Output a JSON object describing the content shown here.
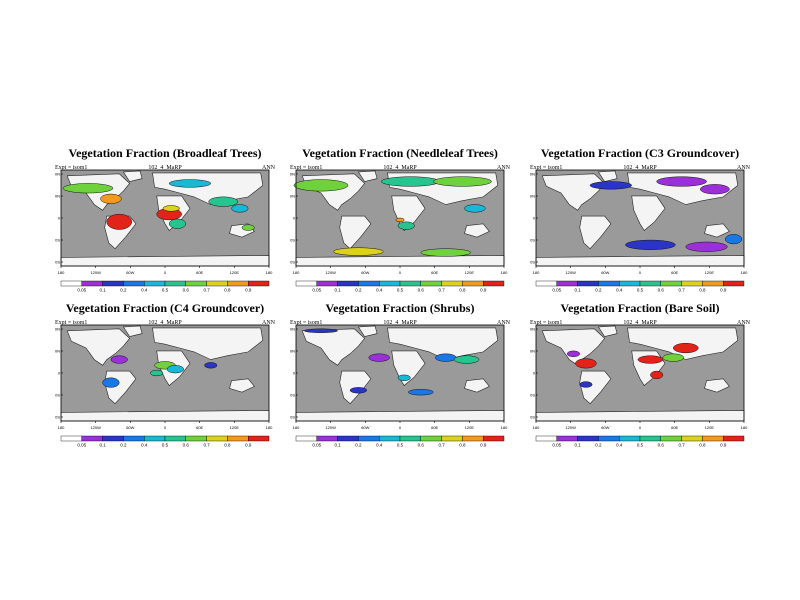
{
  "panels": [
    {
      "title": "Vegetation Fraction (Broadleaf Trees)",
      "expt": "Expt = isom1",
      "case": "102_4_MaRP",
      "season": "ANN",
      "lon_labels": [
        "180",
        "120W",
        "60W",
        "0",
        "60E",
        "120E",
        "180"
      ],
      "lat_labels": [
        "80N",
        "40N",
        "0",
        "40S",
        "80S"
      ],
      "cbar_labels": [
        "0.05",
        "0.1",
        "0.2",
        "0.4",
        "0.5",
        "0.6",
        "0.7",
        "0.8",
        "0.9"
      ]
    },
    {
      "title": "Vegetation Fraction (Needleleaf Trees)",
      "expt": "Expt = isom1",
      "case": "102_4_MaRP",
      "season": "ANN",
      "lon_labels": [
        "180",
        "120W",
        "60W",
        "0",
        "60E",
        "120E",
        "180"
      ],
      "lat_labels": [
        "80N",
        "40N",
        "0",
        "40S",
        "80S"
      ],
      "cbar_labels": [
        "0.05",
        "0.1",
        "0.2",
        "0.4",
        "0.5",
        "0.6",
        "0.7",
        "0.8",
        "0.9"
      ]
    },
    {
      "title": "Vegetation Fraction (C3 Groundcover)",
      "expt": "Expt = isom1",
      "case": "102_4_MaRP",
      "season": "ANN",
      "lon_labels": [
        "180",
        "120W",
        "60W",
        "0",
        "60E",
        "120E",
        "180"
      ],
      "lat_labels": [
        "80N",
        "40N",
        "0",
        "40S",
        "80S"
      ],
      "cbar_labels": [
        "0.05",
        "0.1",
        "0.2",
        "0.4",
        "0.5",
        "0.6",
        "0.7",
        "0.8",
        "0.9"
      ]
    },
    {
      "title": "Vegetation Fraction (C4 Groundcover)",
      "expt": "Expt = isom1",
      "case": "102_4_MaRP",
      "season": "ANN",
      "lon_labels": [
        "180",
        "120W",
        "60W",
        "0",
        "60E",
        "120E",
        "180"
      ],
      "lat_labels": [
        "80N",
        "40N",
        "0",
        "40S",
        "80S"
      ],
      "cbar_labels": [
        "0.05",
        "0.1",
        "0.2",
        "0.4",
        "0.5",
        "0.6",
        "0.7",
        "0.8",
        "0.9"
      ]
    },
    {
      "title": "Vegetation Fraction (Shrubs)",
      "expt": "Expt = isom1",
      "case": "102_4_MaRP",
      "season": "ANN",
      "lon_labels": [
        "180",
        "120W",
        "60W",
        "0",
        "60E",
        "120E",
        "180"
      ],
      "lat_labels": [
        "80N",
        "40N",
        "0",
        "40S",
        "80S"
      ],
      "cbar_labels": [
        "0.05",
        "0.1",
        "0.2",
        "0.4",
        "0.5",
        "0.6",
        "0.7",
        "0.8",
        "0.9"
      ]
    },
    {
      "title": "Vegetation Fraction (Bare Soil)",
      "expt": "Expt = isom1",
      "case": "102_4_MaRP",
      "season": "ANN",
      "lon_labels": [
        "180",
        "120W",
        "60W",
        "0",
        "60E",
        "120E",
        "180"
      ],
      "lat_labels": [
        "80N",
        "40N",
        "0",
        "40S",
        "80S"
      ],
      "cbar_labels": [
        "0.05",
        "0.1",
        "0.2",
        "0.4",
        "0.5",
        "0.6",
        "0.7",
        "0.8",
        "0.9"
      ]
    }
  ],
  "colors": {
    "ocean": "#9a9a9a",
    "land_empty": "#f4f4f4",
    "colorbar": [
      "#ffffff",
      "#9b30d8",
      "#2a35c8",
      "#1a78e6",
      "#19b8d6",
      "#27c490",
      "#6fd23c",
      "#dcd21e",
      "#f39a1c",
      "#e2231a"
    ]
  }
}
